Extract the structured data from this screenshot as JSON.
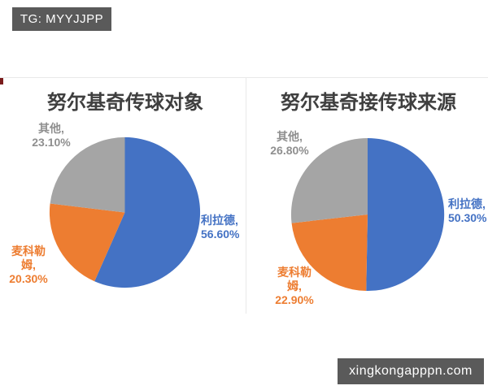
{
  "banners": {
    "top": "TG: MYYJJPP",
    "bottom": "xingkongapppn.com"
  },
  "colors": {
    "banner_bg": "#5a5a5a",
    "banner_fg": "#ffffff",
    "title_text": "#3f3f3f",
    "divider": "#e9e9e9",
    "series_blue": "#4472C4",
    "series_orange": "#ED7D31",
    "series_gray": "#A5A5A5"
  },
  "chart_data": [
    {
      "type": "pie",
      "title": "努尔基奇传球对象",
      "start_angle_deg": 0,
      "direction": "clockwise",
      "legend": "none",
      "label_position": "outside",
      "slices": [
        {
          "label": "利拉德",
          "value": 56.6,
          "color": "#4472C4",
          "display": [
            "利拉德,",
            "56.60%"
          ]
        },
        {
          "label": "麦科勒姆",
          "value": 20.3,
          "color": "#ED7D31",
          "display": [
            "麦科勒",
            "姆,",
            "20.30%"
          ]
        },
        {
          "label": "其他",
          "value": 23.1,
          "color": "#A5A5A5",
          "display": [
            "其他,",
            "23.10%"
          ]
        }
      ]
    },
    {
      "type": "pie",
      "title": "努尔基奇接传球来源",
      "start_angle_deg": 0,
      "direction": "clockwise",
      "legend": "none",
      "label_position": "outside",
      "slices": [
        {
          "label": "利拉德",
          "value": 50.3,
          "color": "#4472C4",
          "display": [
            "利拉德,",
            "50.30%"
          ]
        },
        {
          "label": "麦科勒姆",
          "value": 22.9,
          "color": "#ED7D31",
          "display": [
            "麦科勒",
            "姆,",
            "22.90%"
          ]
        },
        {
          "label": "其他",
          "value": 26.8,
          "color": "#A5A5A5",
          "display": [
            "其他,",
            "26.80%"
          ]
        }
      ]
    }
  ]
}
